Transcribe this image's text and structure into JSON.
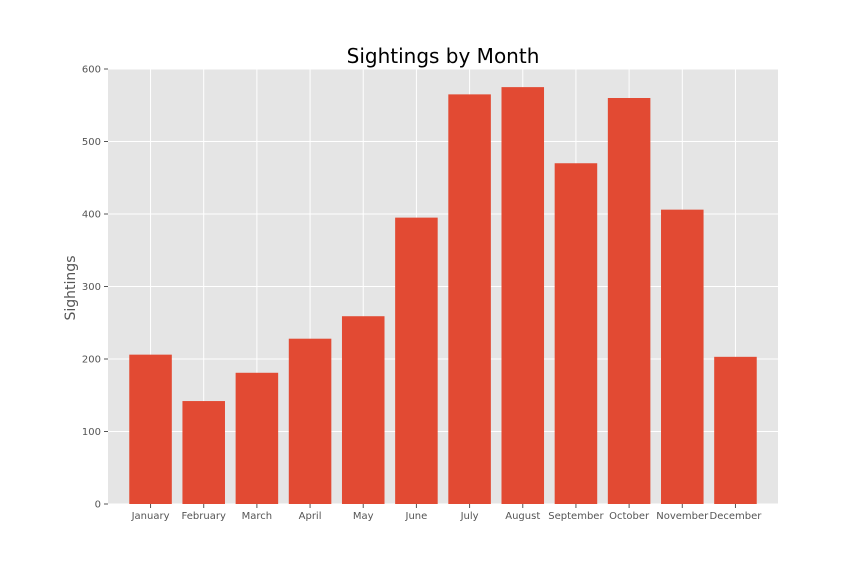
{
  "chart_data": {
    "type": "bar",
    "title": "Sightings by Month",
    "xlabel": "",
    "ylabel": "Sightings",
    "categories": [
      "January",
      "February",
      "March",
      "April",
      "May",
      "June",
      "July",
      "August",
      "September",
      "October",
      "November",
      "December"
    ],
    "values": [
      206,
      142,
      181,
      228,
      259,
      395,
      565,
      575,
      470,
      560,
      406,
      203
    ],
    "ylim": [
      0,
      600
    ],
    "yticks": [
      0,
      100,
      200,
      300,
      400,
      500,
      600
    ],
    "grid": true,
    "legend": "none",
    "colors": {
      "bar": "#E24A33",
      "plot_background": "#E5E5E5",
      "grid": "#FFFFFF",
      "tick_text": "#555555",
      "title_text": "#000000"
    }
  }
}
